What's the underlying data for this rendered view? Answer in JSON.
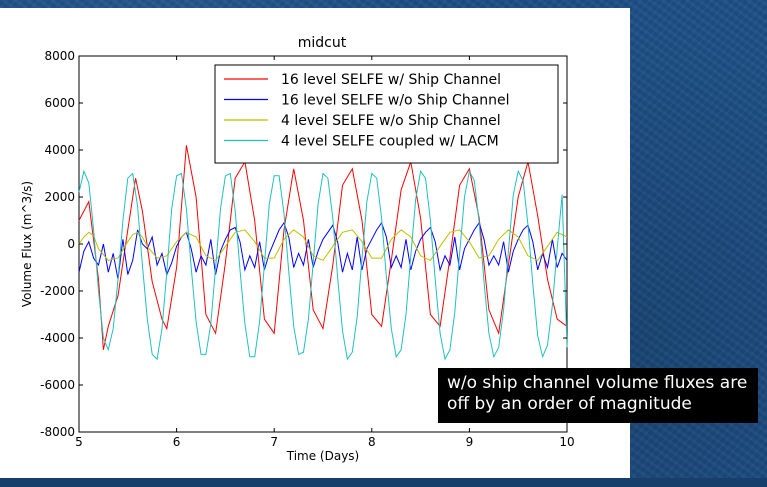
{
  "chart_data": {
    "type": "line",
    "title": "midcut",
    "xlabel": "Time (Days)",
    "ylabel": "Volume Flux (m^3/s)",
    "xlim": [
      5,
      10
    ],
    "ylim": [
      -8000,
      8000
    ],
    "xticks": [
      "5",
      "6",
      "7",
      "8",
      "9",
      "10"
    ],
    "yticks": [
      "8000",
      "6000",
      "4000",
      "2000",
      "0",
      "-2000",
      "-4000",
      "-6000",
      "-8000"
    ],
    "grid": false,
    "legend_position": "top-right",
    "series": [
      {
        "name": "16 level SELFE w/ Ship Channel",
        "color": "#ff0000",
        "x": [
          5.0,
          5.1,
          5.2,
          5.25,
          5.3,
          5.4,
          5.5,
          5.58,
          5.65,
          5.75,
          5.85,
          5.9,
          6.0,
          6.1,
          6.2,
          6.3,
          6.4,
          6.5,
          6.6,
          6.7,
          6.8,
          6.9,
          7.0,
          7.1,
          7.2,
          7.3,
          7.4,
          7.5,
          7.6,
          7.7,
          7.8,
          7.9,
          8.0,
          8.1,
          8.2,
          8.3,
          8.4,
          8.5,
          8.6,
          8.7,
          8.8,
          8.9,
          9.0,
          9.1,
          9.2,
          9.3,
          9.4,
          9.5,
          9.6,
          9.7,
          9.8,
          9.9,
          10.0
        ],
        "y": [
          1000,
          1800,
          -1500,
          -4500,
          -3500,
          -2200,
          600,
          2800,
          1400,
          -1600,
          -3200,
          -3600,
          -1000,
          4200,
          2000,
          -3000,
          -3800,
          -800,
          2800,
          3500,
          1000,
          -3200,
          -3800,
          600,
          3200,
          1000,
          -2800,
          -3600,
          -900,
          2500,
          3200,
          1000,
          -3000,
          -3500,
          -700,
          2300,
          3500,
          1100,
          -3000,
          -3500,
          -600,
          2500,
          3200,
          1100,
          -2800,
          -3800,
          -900,
          2000,
          3500,
          1200,
          -1500,
          -3200,
          -3500
        ]
      },
      {
        "name": "16 level SELFE w/o Ship Channel",
        "color": "#0000ff",
        "x": [
          5.0,
          5.05,
          5.1,
          5.15,
          5.2,
          5.25,
          5.3,
          5.35,
          5.4,
          5.45,
          5.5,
          5.55,
          5.6,
          5.65,
          5.7,
          5.75,
          5.8,
          5.85,
          5.9,
          5.95,
          6.0,
          6.05,
          6.1,
          6.15,
          6.2,
          6.25,
          6.3,
          6.35,
          6.4,
          6.45,
          6.5,
          6.55,
          6.6,
          6.65,
          6.7,
          6.75,
          6.8,
          6.85,
          6.9,
          6.95,
          7.0,
          7.05,
          7.1,
          7.15,
          7.2,
          7.25,
          7.3,
          7.35,
          7.4,
          7.45,
          7.5,
          7.55,
          7.6,
          7.65,
          7.7,
          7.75,
          7.8,
          7.85,
          7.9,
          7.95,
          8.0,
          8.05,
          8.1,
          8.15,
          8.2,
          8.25,
          8.3,
          8.35,
          8.4,
          8.45,
          8.5,
          8.55,
          8.6,
          8.65,
          8.7,
          8.75,
          8.8,
          8.85,
          8.9,
          8.95,
          9.0,
          9.05,
          9.1,
          9.15,
          9.2,
          9.25,
          9.3,
          9.35,
          9.4,
          9.45,
          9.5,
          9.55,
          9.6,
          9.65,
          9.7,
          9.75,
          9.8,
          9.85,
          9.9,
          9.95,
          10.0
        ],
        "y": [
          -1200,
          -300,
          100,
          -600,
          -900,
          0,
          -1200,
          -400,
          -1500,
          200,
          -1300,
          -700,
          600,
          0,
          -200,
          300,
          -900,
          -400,
          -1300,
          -800,
          -100,
          300,
          500,
          -200,
          -1200,
          -500,
          -900,
          200,
          -1300,
          -300,
          200,
          600,
          700,
          100,
          -1100,
          -500,
          -1000,
          100,
          -1100,
          -400,
          100,
          600,
          900,
          300,
          -1000,
          -400,
          -900,
          200,
          -1000,
          -300,
          200,
          500,
          800,
          100,
          -1200,
          -400,
          -1100,
          300,
          -1100,
          -200,
          200,
          600,
          900,
          300,
          -1000,
          -500,
          -1000,
          200,
          -1100,
          -300,
          200,
          500,
          700,
          100,
          -1100,
          -500,
          -900,
          300,
          -1100,
          -200,
          200,
          600,
          900,
          200,
          -900,
          -500,
          -900,
          100,
          -1200,
          -300,
          200,
          600,
          800,
          100,
          -1100,
          -400,
          -1000,
          200,
          -1000,
          -400,
          -700
        ]
      },
      {
        "name": "4 level SELFE w/o Ship Channel",
        "color": "#bfbf00",
        "x": [
          5.0,
          5.05,
          5.1,
          5.15,
          5.2,
          5.3,
          5.4,
          5.5,
          5.55,
          5.6,
          5.65,
          5.7,
          5.8,
          5.9,
          6.0,
          6.1,
          6.2,
          6.3,
          6.4,
          6.5,
          6.6,
          6.7,
          6.8,
          6.9,
          7.0,
          7.1,
          7.2,
          7.3,
          7.4,
          7.5,
          7.6,
          7.7,
          7.8,
          7.9,
          8.0,
          8.1,
          8.2,
          8.3,
          8.4,
          8.5,
          8.6,
          8.7,
          8.8,
          8.9,
          9.0,
          9.1,
          9.2,
          9.3,
          9.4,
          9.5,
          9.6,
          9.7,
          9.8,
          9.9,
          10.0
        ],
        "y": [
          0,
          300,
          500,
          350,
          -200,
          -700,
          -600,
          100,
          400,
          500,
          300,
          -100,
          -600,
          -500,
          100,
          500,
          300,
          -500,
          -700,
          -100,
          500,
          600,
          100,
          -600,
          -600,
          200,
          600,
          300,
          -500,
          -700,
          -100,
          500,
          600,
          100,
          -600,
          -600,
          200,
          600,
          300,
          -500,
          -700,
          -100,
          500,
          600,
          100,
          -600,
          -500,
          200,
          600,
          300,
          -500,
          -700,
          -100,
          500,
          300
        ]
      },
      {
        "name": "4 level SELFE coupled w/ LACM",
        "color": "#20c0c0",
        "x": [
          5.0,
          5.05,
          5.1,
          5.15,
          5.2,
          5.25,
          5.3,
          5.35,
          5.4,
          5.45,
          5.5,
          5.55,
          5.6,
          5.65,
          5.7,
          5.75,
          5.8,
          5.85,
          5.9,
          5.95,
          6.0,
          6.05,
          6.1,
          6.15,
          6.2,
          6.25,
          6.3,
          6.35,
          6.4,
          6.45,
          6.5,
          6.55,
          6.6,
          6.65,
          6.7,
          6.75,
          6.8,
          6.85,
          6.9,
          6.95,
          7.0,
          7.05,
          7.1,
          7.15,
          7.2,
          7.25,
          7.3,
          7.35,
          7.4,
          7.45,
          7.5,
          7.55,
          7.6,
          7.65,
          7.7,
          7.75,
          7.8,
          7.85,
          7.9,
          7.95,
          8.0,
          8.05,
          8.1,
          8.15,
          8.2,
          8.25,
          8.3,
          8.35,
          8.4,
          8.45,
          8.5,
          8.55,
          8.6,
          8.65,
          8.7,
          8.75,
          8.8,
          8.85,
          8.9,
          8.95,
          9.0,
          9.05,
          9.1,
          9.15,
          9.2,
          9.25,
          9.3,
          9.35,
          9.4,
          9.45,
          9.5,
          9.55,
          9.6,
          9.65,
          9.7,
          9.75,
          9.8,
          9.85,
          9.9,
          9.95,
          10.0
        ],
        "y": [
          2200,
          3100,
          2600,
          600,
          -2000,
          -4000,
          -4500,
          -3600,
          -1500,
          1000,
          2800,
          3000,
          1600,
          -900,
          -3200,
          -4700,
          -4900,
          -3600,
          -1200,
          1500,
          2900,
          3000,
          1500,
          -1000,
          -3300,
          -4700,
          -4700,
          -3400,
          -1000,
          1500,
          2900,
          3000,
          1400,
          -1100,
          -3400,
          -4800,
          -4800,
          -3300,
          -900,
          1700,
          2900,
          2900,
          1300,
          -1200,
          -3500,
          -4700,
          -4600,
          -3200,
          -800,
          1700,
          3000,
          2800,
          1100,
          -1400,
          -3700,
          -4900,
          -4600,
          -3100,
          -600,
          1800,
          3000,
          2800,
          1100,
          -1400,
          -3600,
          -4800,
          -4500,
          -3000,
          -500,
          1900,
          3100,
          2800,
          1000,
          -1500,
          -3800,
          -4900,
          -4500,
          -2900,
          -400,
          2000,
          3100,
          2700,
          900,
          -1600,
          -3800,
          -4800,
          -4400,
          -2800,
          -300,
          2100,
          3100,
          2700,
          800,
          -1700,
          -3900,
          -4800,
          -4300,
          -2600,
          -200,
          2100,
          -4400
        ]
      }
    ]
  },
  "callout": {
    "text": "w/o ship channel volume fluxes are\noff by an order of magnitude"
  }
}
